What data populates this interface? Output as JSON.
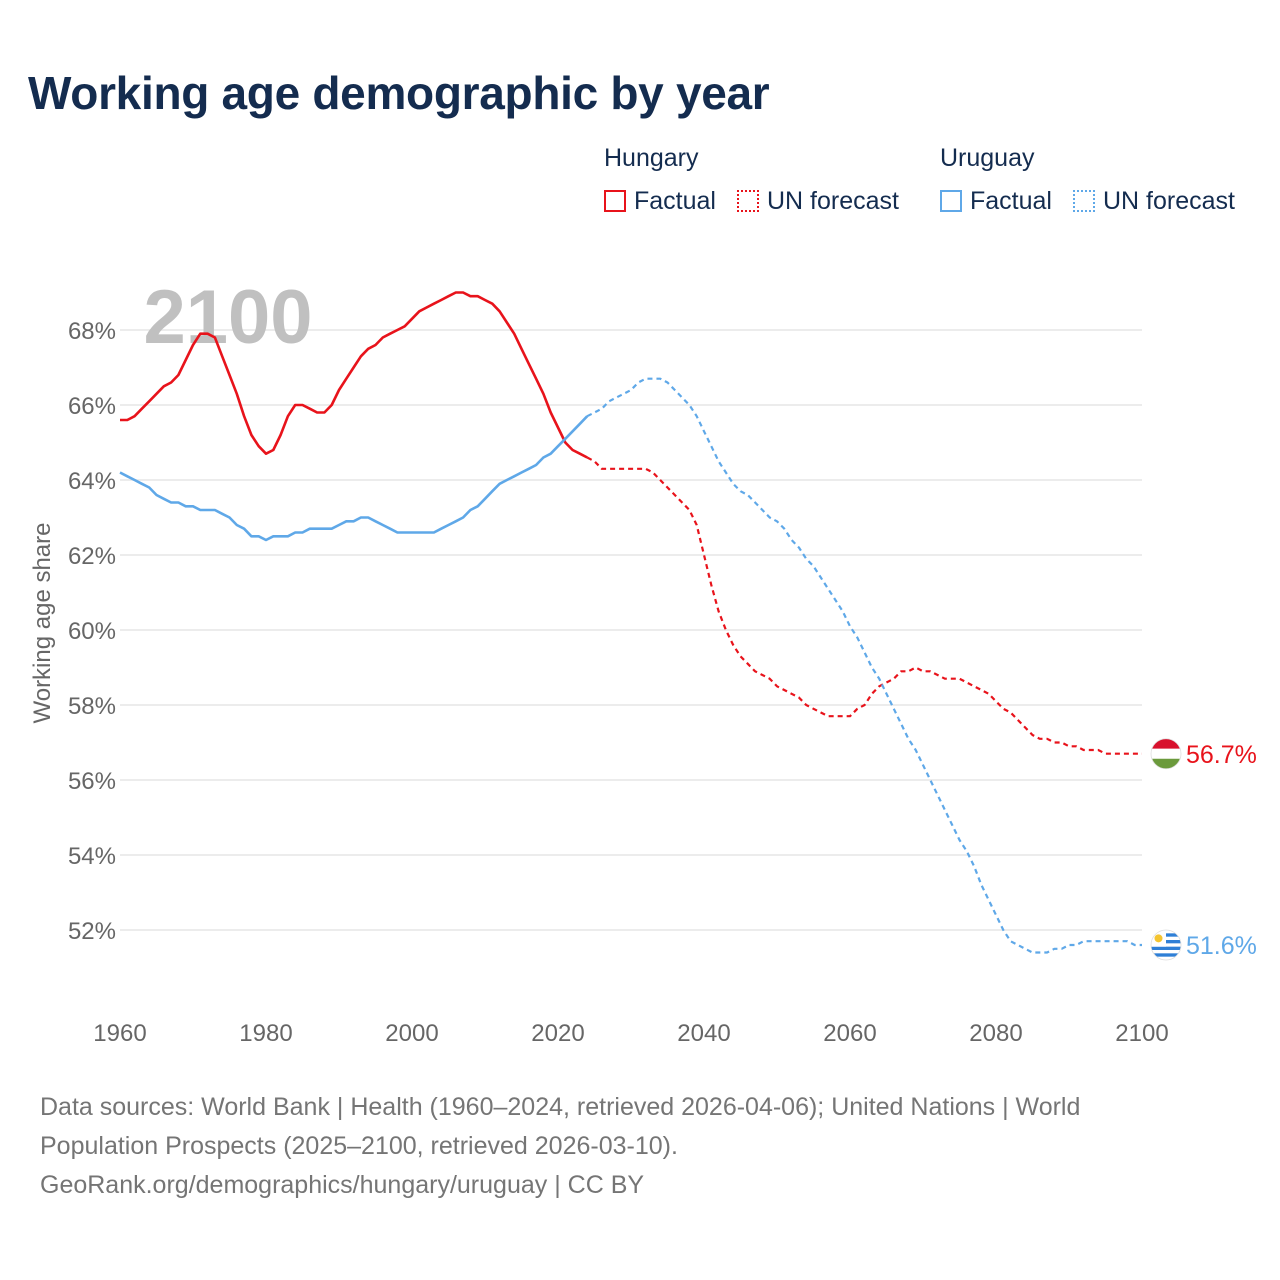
{
  "title": "Working age demographic by year",
  "legend": {
    "groups": [
      {
        "name": "Hungary",
        "items": [
          {
            "label": "Factual",
            "color": "#e8131b",
            "style": "solid"
          },
          {
            "label": "UN forecast",
            "color": "#e8131b",
            "style": "dotted"
          }
        ]
      },
      {
        "name": "Uruguay",
        "items": [
          {
            "label": "Factual",
            "color": "#5fa8e8",
            "style": "solid"
          },
          {
            "label": "UN forecast",
            "color": "#5fa8e8",
            "style": "dotted"
          }
        ]
      }
    ]
  },
  "footer": {
    "line1": "Data sources: World Bank | Health (1960–2024, retrieved 2026-04-06); United Nations | World",
    "line2": "Population Prospects (2025–2100, retrieved 2026-03-10).",
    "line3": "GeoRank.org/demographics/hungary/uruguay | CC BY"
  },
  "chart_data": {
    "type": "line",
    "title": "Working age demographic by year",
    "year_watermark": "2100",
    "xlabel": "",
    "ylabel": "Working age share",
    "xlim": [
      1960,
      2100
    ],
    "ylim": [
      50.8,
      69.6
    ],
    "x_ticks": [
      1960,
      1980,
      2000,
      2020,
      2040,
      2060,
      2080,
      2100
    ],
    "x_tick_labels": [
      "1960",
      "1980",
      "2000",
      "2020",
      "2040",
      "2060",
      "2080",
      "2100"
    ],
    "y_ticks": [
      52,
      54,
      56,
      58,
      60,
      62,
      64,
      66,
      68
    ],
    "y_tick_labels": [
      "52%",
      "54%",
      "56%",
      "58%",
      "60%",
      "62%",
      "64%",
      "66%",
      "68%"
    ],
    "grid": true,
    "series": [
      {
        "name": "Hungary",
        "color": "#e8131b",
        "end_label": "56.7%",
        "flag": "hungary",
        "factual": {
          "x": [
            1960,
            1961,
            1962,
            1963,
            1964,
            1965,
            1966,
            1967,
            1968,
            1969,
            1970,
            1971,
            1972,
            1973,
            1974,
            1975,
            1976,
            1977,
            1978,
            1979,
            1980,
            1981,
            1982,
            1983,
            1984,
            1985,
            1986,
            1987,
            1988,
            1989,
            1990,
            1991,
            1992,
            1993,
            1994,
            1995,
            1996,
            1997,
            1998,
            1999,
            2000,
            2001,
            2002,
            2003,
            2004,
            2005,
            2006,
            2007,
            2008,
            2009,
            2010,
            2011,
            2012,
            2013,
            2014,
            2015,
            2016,
            2017,
            2018,
            2019,
            2020,
            2021,
            2022,
            2023,
            2024
          ],
          "y": [
            65.6,
            65.6,
            65.7,
            65.9,
            66.1,
            66.3,
            66.5,
            66.6,
            66.8,
            67.2,
            67.6,
            67.9,
            67.9,
            67.8,
            67.3,
            66.8,
            66.3,
            65.7,
            65.2,
            64.9,
            64.7,
            64.8,
            65.2,
            65.7,
            66.0,
            66.0,
            65.9,
            65.8,
            65.8,
            66.0,
            66.4,
            66.7,
            67.0,
            67.3,
            67.5,
            67.6,
            67.8,
            67.9,
            68.0,
            68.1,
            68.3,
            68.5,
            68.6,
            68.7,
            68.8,
            68.9,
            69.0,
            69.0,
            68.9,
            68.9,
            68.8,
            68.7,
            68.5,
            68.2,
            67.9,
            67.5,
            67.1,
            66.7,
            66.3,
            65.8,
            65.4,
            65.0,
            64.8,
            64.7,
            64.6
          ]
        },
        "forecast": {
          "x": [
            2024,
            2025,
            2026,
            2027,
            2028,
            2029,
            2030,
            2031,
            2032,
            2033,
            2034,
            2035,
            2036,
            2037,
            2038,
            2039,
            2040,
            2041,
            2042,
            2043,
            2044,
            2045,
            2046,
            2047,
            2048,
            2049,
            2050,
            2051,
            2052,
            2053,
            2054,
            2055,
            2056,
            2057,
            2058,
            2059,
            2060,
            2061,
            2062,
            2063,
            2064,
            2065,
            2066,
            2067,
            2068,
            2069,
            2070,
            2071,
            2072,
            2073,
            2074,
            2075,
            2076,
            2077,
            2078,
            2079,
            2080,
            2081,
            2082,
            2083,
            2084,
            2085,
            2086,
            2087,
            2088,
            2089,
            2090,
            2091,
            2092,
            2093,
            2094,
            2095,
            2096,
            2097,
            2098,
            2099,
            2100
          ],
          "y": [
            64.6,
            64.5,
            64.3,
            64.3,
            64.3,
            64.3,
            64.3,
            64.3,
            64.3,
            64.2,
            64.0,
            63.8,
            63.6,
            63.4,
            63.2,
            62.8,
            62.0,
            61.2,
            60.5,
            60.0,
            59.6,
            59.3,
            59.1,
            58.9,
            58.8,
            58.7,
            58.5,
            58.4,
            58.3,
            58.2,
            58.0,
            57.9,
            57.8,
            57.7,
            57.7,
            57.7,
            57.7,
            57.9,
            58.0,
            58.3,
            58.5,
            58.6,
            58.7,
            58.9,
            58.9,
            59.0,
            58.9,
            58.9,
            58.8,
            58.7,
            58.7,
            58.7,
            58.6,
            58.5,
            58.4,
            58.3,
            58.1,
            57.9,
            57.8,
            57.6,
            57.4,
            57.2,
            57.1,
            57.1,
            57.0,
            57.0,
            56.9,
            56.9,
            56.8,
            56.8,
            56.8,
            56.7,
            56.7,
            56.7,
            56.7,
            56.7,
            56.7
          ]
        }
      },
      {
        "name": "Uruguay",
        "color": "#5fa8e8",
        "end_label": "51.6%",
        "flag": "uruguay",
        "factual": {
          "x": [
            1960,
            1961,
            1962,
            1963,
            1964,
            1965,
            1966,
            1967,
            1968,
            1969,
            1970,
            1971,
            1972,
            1973,
            1974,
            1975,
            1976,
            1977,
            1978,
            1979,
            1980,
            1981,
            1982,
            1983,
            1984,
            1985,
            1986,
            1987,
            1988,
            1989,
            1990,
            1991,
            1992,
            1993,
            1994,
            1995,
            1996,
            1997,
            1998,
            1999,
            2000,
            2001,
            2002,
            2003,
            2004,
            2005,
            2006,
            2007,
            2008,
            2009,
            2010,
            2011,
            2012,
            2013,
            2014,
            2015,
            2016,
            2017,
            2018,
            2019,
            2020,
            2021,
            2022,
            2023,
            2024
          ],
          "y": [
            64.2,
            64.1,
            64.0,
            63.9,
            63.8,
            63.6,
            63.5,
            63.4,
            63.4,
            63.3,
            63.3,
            63.2,
            63.2,
            63.2,
            63.1,
            63.0,
            62.8,
            62.7,
            62.5,
            62.5,
            62.4,
            62.5,
            62.5,
            62.5,
            62.6,
            62.6,
            62.7,
            62.7,
            62.7,
            62.7,
            62.8,
            62.9,
            62.9,
            63.0,
            63.0,
            62.9,
            62.8,
            62.7,
            62.6,
            62.6,
            62.6,
            62.6,
            62.6,
            62.6,
            62.7,
            62.8,
            62.9,
            63.0,
            63.2,
            63.3,
            63.5,
            63.7,
            63.9,
            64.0,
            64.1,
            64.2,
            64.3,
            64.4,
            64.6,
            64.7,
            64.9,
            65.1,
            65.3,
            65.5,
            65.7
          ]
        },
        "forecast": {
          "x": [
            2024,
            2025,
            2026,
            2027,
            2028,
            2029,
            2030,
            2031,
            2032,
            2033,
            2034,
            2035,
            2036,
            2037,
            2038,
            2039,
            2040,
            2041,
            2042,
            2043,
            2044,
            2045,
            2046,
            2047,
            2048,
            2049,
            2050,
            2051,
            2052,
            2053,
            2054,
            2055,
            2056,
            2057,
            2058,
            2059,
            2060,
            2061,
            2062,
            2063,
            2064,
            2065,
            2066,
            2067,
            2068,
            2069,
            2070,
            2071,
            2072,
            2073,
            2074,
            2075,
            2076,
            2077,
            2078,
            2079,
            2080,
            2081,
            2082,
            2083,
            2084,
            2085,
            2086,
            2087,
            2088,
            2089,
            2090,
            2091,
            2092,
            2093,
            2094,
            2095,
            2096,
            2097,
            2098,
            2099,
            2100
          ],
          "y": [
            65.7,
            65.8,
            65.9,
            66.1,
            66.2,
            66.3,
            66.4,
            66.6,
            66.7,
            66.7,
            66.7,
            66.6,
            66.4,
            66.2,
            66.0,
            65.7,
            65.3,
            64.9,
            64.5,
            64.2,
            63.9,
            63.7,
            63.6,
            63.4,
            63.2,
            63.0,
            62.9,
            62.7,
            62.4,
            62.2,
            61.9,
            61.7,
            61.4,
            61.1,
            60.8,
            60.5,
            60.1,
            59.8,
            59.4,
            59.0,
            58.7,
            58.3,
            57.9,
            57.5,
            57.1,
            56.8,
            56.4,
            56.0,
            55.6,
            55.2,
            54.8,
            54.4,
            54.1,
            53.7,
            53.2,
            52.8,
            52.4,
            52.0,
            51.7,
            51.6,
            51.5,
            51.4,
            51.4,
            51.4,
            51.5,
            51.5,
            51.6,
            51.6,
            51.7,
            51.7,
            51.7,
            51.7,
            51.7,
            51.7,
            51.7,
            51.6,
            51.6
          ]
        }
      }
    ]
  }
}
